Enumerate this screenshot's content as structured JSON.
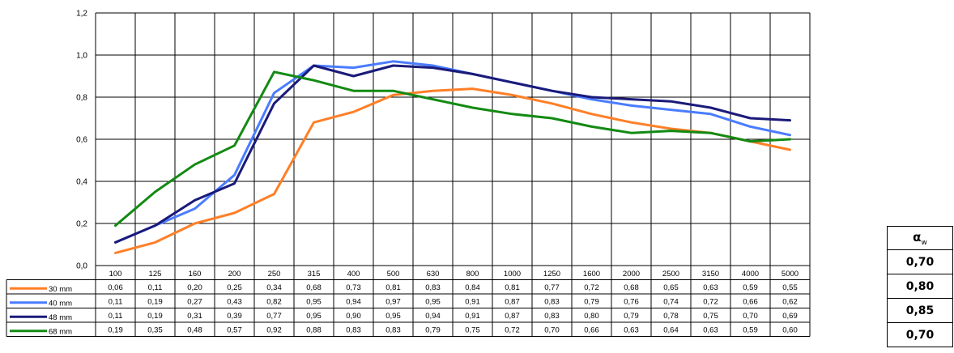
{
  "chart_data": {
    "type": "line",
    "title": "",
    "xlabel": "",
    "ylabel": "",
    "categories": [
      "100",
      "125",
      "160",
      "200",
      "250",
      "315",
      "400",
      "500",
      "630",
      "800",
      "1000",
      "1250",
      "1600",
      "2000",
      "2500",
      "3150",
      "4000",
      "5000"
    ],
    "y_ticks": [
      "0,0",
      "0,2",
      "0,4",
      "0,6",
      "0,8",
      "1,0",
      "1,2"
    ],
    "ylim": [
      0,
      1.2
    ],
    "grid": true,
    "legend_position": "table-left",
    "series": [
      {
        "name": "30 mm",
        "color": "#ff7f27",
        "values": [
          0.06,
          0.11,
          0.2,
          0.25,
          0.34,
          0.68,
          0.73,
          0.81,
          0.83,
          0.84,
          0.81,
          0.77,
          0.72,
          0.68,
          0.65,
          0.63,
          0.59,
          0.55
        ],
        "labels": [
          "0,06",
          "0,11",
          "0,20",
          "0,25",
          "0,34",
          "0,68",
          "0,73",
          "0,81",
          "0,83",
          "0,84",
          "0,81",
          "0,77",
          "0,72",
          "0,68",
          "0,65",
          "0,63",
          "0,59",
          "0,55"
        ]
      },
      {
        "name": "40 mm",
        "color": "#4a7cff",
        "values": [
          0.11,
          0.19,
          0.27,
          0.43,
          0.82,
          0.95,
          0.94,
          0.97,
          0.95,
          0.91,
          0.87,
          0.83,
          0.79,
          0.76,
          0.74,
          0.72,
          0.66,
          0.62
        ],
        "labels": [
          "0,11",
          "0,19",
          "0,27",
          "0,43",
          "0,82",
          "0,95",
          "0,94",
          "0,97",
          "0,95",
          "0,91",
          "0,87",
          "0,83",
          "0,79",
          "0,76",
          "0,74",
          "0,72",
          "0,66",
          "0,62"
        ]
      },
      {
        "name": "48 mm",
        "color": "#1a1a7a",
        "values": [
          0.11,
          0.19,
          0.31,
          0.39,
          0.77,
          0.95,
          0.9,
          0.95,
          0.94,
          0.91,
          0.87,
          0.83,
          0.8,
          0.79,
          0.78,
          0.75,
          0.7,
          0.69
        ],
        "labels": [
          "0,11",
          "0,19",
          "0,31",
          "0,39",
          "0,77",
          "0,95",
          "0,90",
          "0,95",
          "0,94",
          "0,91",
          "0,87",
          "0,83",
          "0,80",
          "0,79",
          "0,78",
          "0,75",
          "0,70",
          "0,69"
        ]
      },
      {
        "name": "68 mm",
        "color": "#138a13",
        "values": [
          0.19,
          0.35,
          0.48,
          0.57,
          0.92,
          0.88,
          0.83,
          0.83,
          0.79,
          0.75,
          0.72,
          0.7,
          0.66,
          0.63,
          0.64,
          0.63,
          0.59,
          0.6
        ],
        "labels": [
          "0,19",
          "0,35",
          "0,48",
          "0,57",
          "0,92",
          "0,88",
          "0,83",
          "0,83",
          "0,79",
          "0,75",
          "0,72",
          "0,70",
          "0,66",
          "0,63",
          "0,64",
          "0,63",
          "0,59",
          "0,60"
        ]
      }
    ]
  },
  "aw_table": {
    "header": "α",
    "header_sub": "w",
    "values": [
      "0,70",
      "0,80",
      "0,85",
      "0,70"
    ]
  }
}
